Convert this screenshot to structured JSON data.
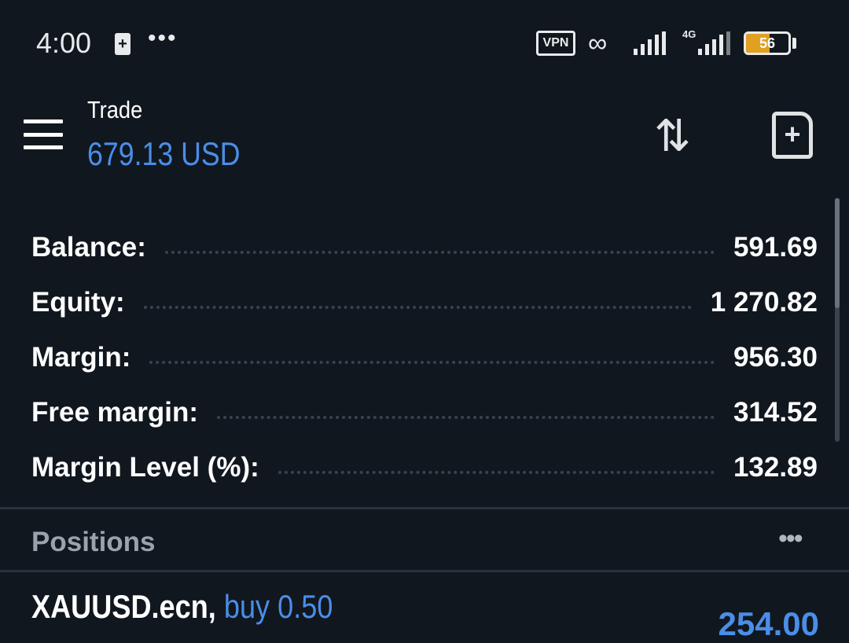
{
  "status_bar": {
    "time": "4:00",
    "notification_dots": "•••",
    "vpn": "VPN",
    "network": "4G",
    "battery": "56",
    "battery_level_percent": 56
  },
  "header": {
    "title": "Trade",
    "balance": "679.13 USD",
    "menu_icon": "hamburger-icon",
    "swap_icon": "sort-arrows-icon",
    "new_order_icon": "file-plus-icon"
  },
  "account": [
    {
      "label": "Balance:",
      "value": "591.69"
    },
    {
      "label": "Equity:",
      "value": "1 270.82"
    },
    {
      "label": "Margin:",
      "value": "956.30"
    },
    {
      "label": "Free margin:",
      "value": "314.52"
    },
    {
      "label": "Margin Level (%):",
      "value": "132.89"
    }
  ],
  "positions": {
    "title": "Positions",
    "more": "•••",
    "items": [
      {
        "symbol": "XAUUSD.ecn,",
        "side": "buy 0.50",
        "profit": "254.00"
      }
    ]
  },
  "colors": {
    "background": "#11171f",
    "accent": "#4a8ee8",
    "battery": "#e0a020"
  }
}
